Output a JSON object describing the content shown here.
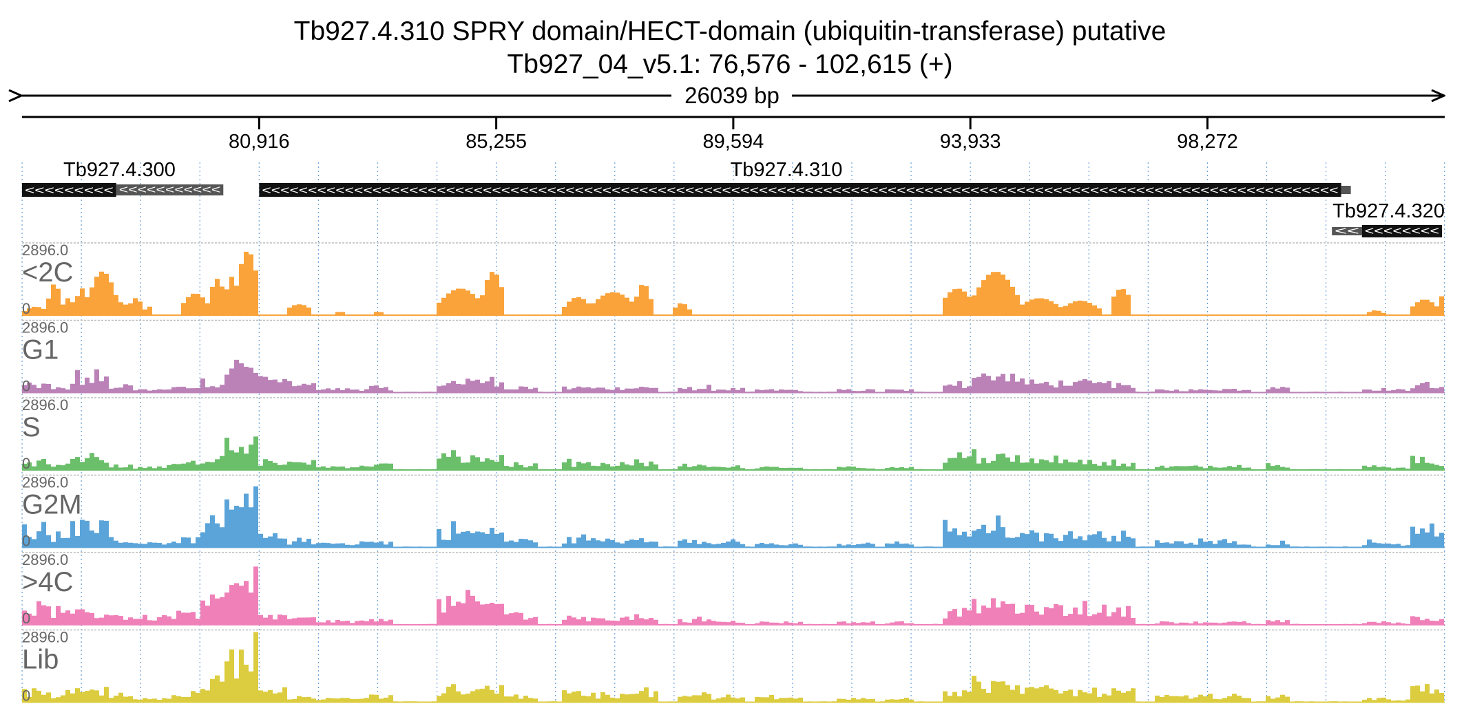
{
  "header": {
    "title_line1": "Tb927.4.310  SPRY domain/HECT-domain (ubiquitin-transferase)  putative",
    "title_line2": "Tb927_04_v5.1: 76,576 - 102,615 (+)",
    "span_label": "26039 bp"
  },
  "chart_data": {
    "type": "area",
    "region": {
      "chromosome": "Tb927_04_v5.1",
      "start": 76576,
      "end": 102615,
      "strand": "+"
    },
    "axis_ticks": [
      "80,916",
      "85,255",
      "89,594",
      "93,933",
      "98,272"
    ],
    "tick_positions": [
      80916,
      85255,
      89594,
      93933,
      98272
    ],
    "grid": true,
    "genes": [
      {
        "name": "Tb927.4.300",
        "strand": "-",
        "start": 76576,
        "end": 80260,
        "utr_start": 78300
      },
      {
        "name": "Tb927.4.310",
        "strand": "-",
        "start": 80916,
        "end": 100720
      },
      {
        "name": "Tb927.4.320",
        "strand": "-",
        "start": 100550,
        "end": 102615,
        "utr_end": 101100
      }
    ],
    "ylim": [
      0,
      2896.0
    ],
    "y_max_label": "2896.0",
    "y_min_label": "0",
    "series": [
      {
        "name": "<2C",
        "color": "#f9a33a",
        "profile": "c2",
        "peaks": [
          [
            76610,
            77050,
            350
          ],
          [
            77050,
            77300,
            1300
          ],
          [
            77300,
            77550,
            700
          ],
          [
            77550,
            77800,
            1100
          ],
          [
            77800,
            78300,
            1800
          ],
          [
            78300,
            78520,
            550
          ],
          [
            78520,
            78800,
            700
          ],
          [
            78800,
            79000,
            350
          ],
          [
            79500,
            80000,
            900
          ],
          [
            80000,
            80300,
            1500
          ],
          [
            80300,
            80500,
            1600
          ],
          [
            80500,
            80916,
            2650
          ],
          [
            81400,
            81900,
            450
          ],
          [
            82300,
            82500,
            150
          ],
          [
            83000,
            83200,
            150
          ],
          [
            84200,
            85000,
            1100
          ],
          [
            85000,
            85400,
            1800
          ],
          [
            86500,
            87000,
            750
          ],
          [
            87000,
            87800,
            950
          ],
          [
            87800,
            88100,
            1300
          ],
          [
            88500,
            88800,
            500
          ],
          [
            93400,
            94000,
            1100
          ],
          [
            94000,
            94800,
            1800
          ],
          [
            94800,
            95600,
            700
          ],
          [
            95600,
            96300,
            600
          ],
          [
            96500,
            96900,
            1100
          ],
          [
            101200,
            101500,
            200
          ],
          [
            102000,
            102500,
            650
          ],
          [
            102500,
            102580,
            900
          ]
        ]
      },
      {
        "name": "G1",
        "color": "#bb82b8",
        "profile": "cycle",
        "peaks": [
          [
            76610,
            77100,
            400
          ],
          [
            77100,
            77500,
            250
          ],
          [
            77500,
            78200,
            750
          ],
          [
            78200,
            78600,
            350
          ],
          [
            78600,
            79200,
            150
          ],
          [
            79200,
            79800,
            300
          ],
          [
            79800,
            80300,
            600
          ],
          [
            80300,
            80916,
            1500
          ],
          [
            80916,
            81400,
            700
          ],
          [
            81400,
            82000,
            400
          ],
          [
            82000,
            82800,
            200
          ],
          [
            82800,
            83400,
            250
          ],
          [
            84200,
            85000,
            600
          ],
          [
            85000,
            85400,
            700
          ],
          [
            85400,
            86000,
            300
          ],
          [
            86500,
            87000,
            250
          ],
          [
            87000,
            87800,
            250
          ],
          [
            87800,
            88200,
            300
          ],
          [
            88600,
            89200,
            250
          ],
          [
            89200,
            89800,
            200
          ],
          [
            90000,
            90900,
            150
          ],
          [
            91500,
            92200,
            150
          ],
          [
            92400,
            92900,
            150
          ],
          [
            93400,
            94000,
            500
          ],
          [
            94000,
            94800,
            900
          ],
          [
            94800,
            95600,
            550
          ],
          [
            95600,
            96400,
            500
          ],
          [
            96400,
            97000,
            500
          ],
          [
            97300,
            98300,
            150
          ],
          [
            98300,
            99100,
            200
          ],
          [
            99300,
            99800,
            250
          ],
          [
            101100,
            101600,
            200
          ],
          [
            101600,
            102000,
            150
          ],
          [
            102000,
            102400,
            450
          ],
          [
            102400,
            102600,
            300
          ]
        ]
      },
      {
        "name": "S",
        "color": "#6bbf6b",
        "profile": "cycle",
        "peaks": [
          [
            76610,
            77100,
            400
          ],
          [
            77100,
            77500,
            300
          ],
          [
            77500,
            78200,
            550
          ],
          [
            78200,
            78600,
            250
          ],
          [
            78600,
            79200,
            150
          ],
          [
            79200,
            79800,
            400
          ],
          [
            79800,
            80300,
            650
          ],
          [
            80300,
            80916,
            1600
          ],
          [
            80916,
            81400,
            500
          ],
          [
            81400,
            82000,
            350
          ],
          [
            82000,
            82800,
            200
          ],
          [
            82800,
            83400,
            300
          ],
          [
            84200,
            85000,
            650
          ],
          [
            85000,
            85400,
            650
          ],
          [
            85400,
            86000,
            300
          ],
          [
            86500,
            87000,
            350
          ],
          [
            87000,
            87800,
            300
          ],
          [
            87800,
            88200,
            350
          ],
          [
            88600,
            89200,
            300
          ],
          [
            89200,
            89800,
            200
          ],
          [
            90000,
            90900,
            150
          ],
          [
            91500,
            92200,
            150
          ],
          [
            92400,
            92900,
            150
          ],
          [
            93400,
            94000,
            600
          ],
          [
            94000,
            94800,
            750
          ],
          [
            94800,
            95600,
            600
          ],
          [
            95600,
            96400,
            450
          ],
          [
            96400,
            97000,
            400
          ],
          [
            97300,
            98300,
            200
          ],
          [
            98300,
            99100,
            250
          ],
          [
            99300,
            99800,
            250
          ],
          [
            101100,
            101600,
            200
          ],
          [
            101600,
            102000,
            150
          ],
          [
            102000,
            102400,
            550
          ],
          [
            102400,
            102600,
            350
          ]
        ]
      },
      {
        "name": "G2M",
        "color": "#5ba4d9",
        "profile": "cycle",
        "peaks": [
          [
            76610,
            77100,
            900
          ],
          [
            77100,
            77500,
            500
          ],
          [
            77500,
            78200,
            1300
          ],
          [
            78200,
            78600,
            450
          ],
          [
            78600,
            79200,
            250
          ],
          [
            79200,
            79800,
            450
          ],
          [
            79800,
            80300,
            1000
          ],
          [
            80300,
            80916,
            2300
          ],
          [
            80916,
            81400,
            600
          ],
          [
            81400,
            82000,
            300
          ],
          [
            82000,
            82800,
            250
          ],
          [
            82800,
            83400,
            300
          ],
          [
            84200,
            85000,
            850
          ],
          [
            85000,
            85400,
            850
          ],
          [
            85400,
            86000,
            400
          ],
          [
            86500,
            87000,
            450
          ],
          [
            87000,
            87800,
            400
          ],
          [
            87800,
            88200,
            600
          ],
          [
            88600,
            89200,
            350
          ],
          [
            89200,
            89800,
            250
          ],
          [
            90000,
            90900,
            200
          ],
          [
            91500,
            92200,
            200
          ],
          [
            92400,
            92900,
            250
          ],
          [
            93400,
            94000,
            900
          ],
          [
            94000,
            94800,
            1000
          ],
          [
            94800,
            95600,
            700
          ],
          [
            95600,
            96400,
            700
          ],
          [
            96400,
            97000,
            700
          ],
          [
            97300,
            98300,
            300
          ],
          [
            98300,
            99100,
            300
          ],
          [
            99300,
            99800,
            250
          ],
          [
            101100,
            101600,
            250
          ],
          [
            101600,
            102000,
            200
          ],
          [
            102000,
            102400,
            1300
          ],
          [
            102400,
            102600,
            500
          ]
        ]
      },
      {
        "name": ">4C",
        "color": "#f080b8",
        "profile": "cycle",
        "peaks": [
          [
            76610,
            77100,
            850
          ],
          [
            77100,
            77500,
            600
          ],
          [
            77500,
            78200,
            650
          ],
          [
            78200,
            78600,
            500
          ],
          [
            78600,
            79200,
            400
          ],
          [
            79200,
            79800,
            600
          ],
          [
            79800,
            80300,
            1250
          ],
          [
            80300,
            80916,
            2000
          ],
          [
            80916,
            81400,
            500
          ],
          [
            81400,
            82000,
            350
          ],
          [
            82000,
            82800,
            200
          ],
          [
            82800,
            83400,
            250
          ],
          [
            84200,
            85000,
            1200
          ],
          [
            85000,
            85400,
            1200
          ],
          [
            85400,
            86000,
            600
          ],
          [
            86500,
            87000,
            400
          ],
          [
            87000,
            87800,
            350
          ],
          [
            87800,
            88200,
            450
          ],
          [
            88600,
            89200,
            250
          ],
          [
            89200,
            89800,
            200
          ],
          [
            90000,
            90900,
            150
          ],
          [
            91500,
            92200,
            150
          ],
          [
            92400,
            92900,
            150
          ],
          [
            93400,
            94000,
            700
          ],
          [
            94000,
            94800,
            1100
          ],
          [
            94800,
            95600,
            850
          ],
          [
            95600,
            96400,
            850
          ],
          [
            96400,
            97000,
            800
          ],
          [
            97300,
            98300,
            150
          ],
          [
            98300,
            99100,
            150
          ],
          [
            99300,
            99800,
            200
          ],
          [
            101100,
            101600,
            150
          ],
          [
            101600,
            102000,
            100
          ],
          [
            102000,
            102400,
            450
          ],
          [
            102400,
            102600,
            250
          ]
        ]
      },
      {
        "name": "Lib",
        "color": "#dccc3f",
        "profile": "cycle",
        "peaks": [
          [
            76610,
            77100,
            600
          ],
          [
            77100,
            77500,
            400
          ],
          [
            77500,
            78200,
            700
          ],
          [
            78200,
            78600,
            350
          ],
          [
            78600,
            79200,
            250
          ],
          [
            79200,
            79800,
            400
          ],
          [
            79800,
            80300,
            1000
          ],
          [
            80300,
            80916,
            2400
          ],
          [
            80916,
            81400,
            550
          ],
          [
            81400,
            82000,
            300
          ],
          [
            82000,
            82800,
            200
          ],
          [
            82800,
            83400,
            350
          ],
          [
            84200,
            85000,
            650
          ],
          [
            85000,
            85400,
            850
          ],
          [
            85400,
            86000,
            350
          ],
          [
            86500,
            87000,
            500
          ],
          [
            87000,
            87800,
            400
          ],
          [
            87800,
            88200,
            500
          ],
          [
            88600,
            89200,
            350
          ],
          [
            89200,
            89800,
            250
          ],
          [
            90000,
            90900,
            250
          ],
          [
            91500,
            92200,
            250
          ],
          [
            92400,
            92900,
            250
          ],
          [
            93400,
            94000,
            650
          ],
          [
            94000,
            94800,
            950
          ],
          [
            94800,
            95600,
            700
          ],
          [
            95600,
            96400,
            600
          ],
          [
            96400,
            97000,
            600
          ],
          [
            97300,
            98300,
            300
          ],
          [
            98300,
            99100,
            350
          ],
          [
            99300,
            99800,
            350
          ],
          [
            101100,
            101600,
            200
          ],
          [
            101600,
            102000,
            150
          ],
          [
            102000,
            102400,
            750
          ],
          [
            102400,
            102600,
            400
          ]
        ]
      }
    ]
  }
}
